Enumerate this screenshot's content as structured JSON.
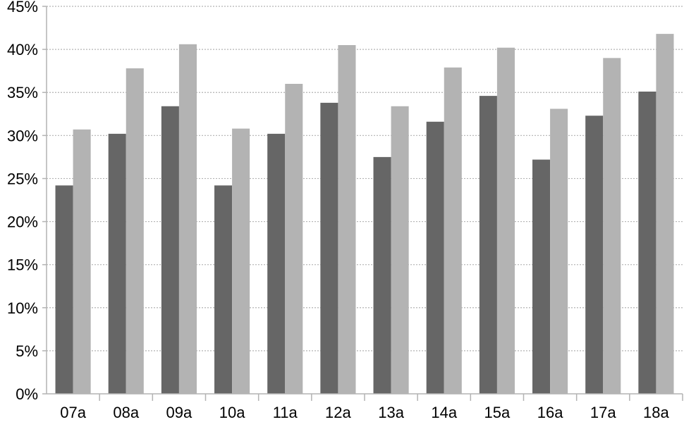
{
  "chart_data": {
    "type": "bar",
    "categories": [
      "07a",
      "08a",
      "09a",
      "10a",
      "11a",
      "12a",
      "13a",
      "14a",
      "15a",
      "16a",
      "17a",
      "18a"
    ],
    "series": [
      {
        "color": "#666666",
        "values": [
          24.2,
          30.2,
          33.4,
          24.2,
          30.2,
          33.8,
          27.5,
          31.6,
          34.6,
          27.2,
          32.3,
          35.1
        ]
      },
      {
        "color": "#b3b3b3",
        "values": [
          30.7,
          37.8,
          40.6,
          30.8,
          36.0,
          40.5,
          33.4,
          37.9,
          40.2,
          33.1,
          39.0,
          41.8
        ]
      }
    ],
    "ylim": [
      0,
      45
    ],
    "y_ticks": [
      "0%",
      "5%",
      "10%",
      "15%",
      "20%",
      "25%",
      "30%",
      "35%",
      "40%",
      "45%"
    ],
    "grid": true,
    "legend": false,
    "title": "",
    "xlabel": "",
    "ylabel": ""
  }
}
